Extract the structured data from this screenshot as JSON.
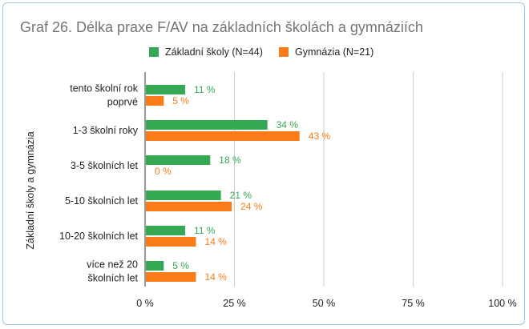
{
  "chart_data": {
    "type": "bar",
    "orientation": "horizontal",
    "title": "Graf 26. Délka praxe F/AV na základních školách a gymnáziích",
    "ylabel": "Základní školy a gymnázia",
    "xlabel": "",
    "xlim": [
      0,
      100
    ],
    "x_ticks": [
      "0 %",
      "25 %",
      "50 %",
      "75 %",
      "100 %"
    ],
    "x_tick_values": [
      0,
      25,
      50,
      75,
      100
    ],
    "categories": [
      [
        "tento školní rok",
        "poprvé"
      ],
      [
        "1-3 školní roky"
      ],
      [
        "3-5 školních let"
      ],
      [
        "5-10 školních let"
      ],
      [
        "10-20 školních let"
      ],
      [
        "více než 20",
        "školních let"
      ]
    ],
    "series": [
      {
        "name": "Základní školy (N=44)",
        "color": "#34a853",
        "values": [
          11,
          34,
          18,
          21,
          11,
          5
        ],
        "labels": [
          "11 %",
          "34 %",
          "18 %",
          "21 %",
          "11 %",
          "5 %"
        ]
      },
      {
        "name": "Gymnázia (N=21)",
        "color": "#fa7b17",
        "values": [
          5,
          43,
          0,
          24,
          14,
          14
        ],
        "labels": [
          "5 %",
          "43 %",
          "0 %",
          "24 %",
          "14 %",
          "14 %"
        ]
      }
    ],
    "legend_position": "top",
    "grid": true,
    "gridline_color": "#cccccc"
  }
}
